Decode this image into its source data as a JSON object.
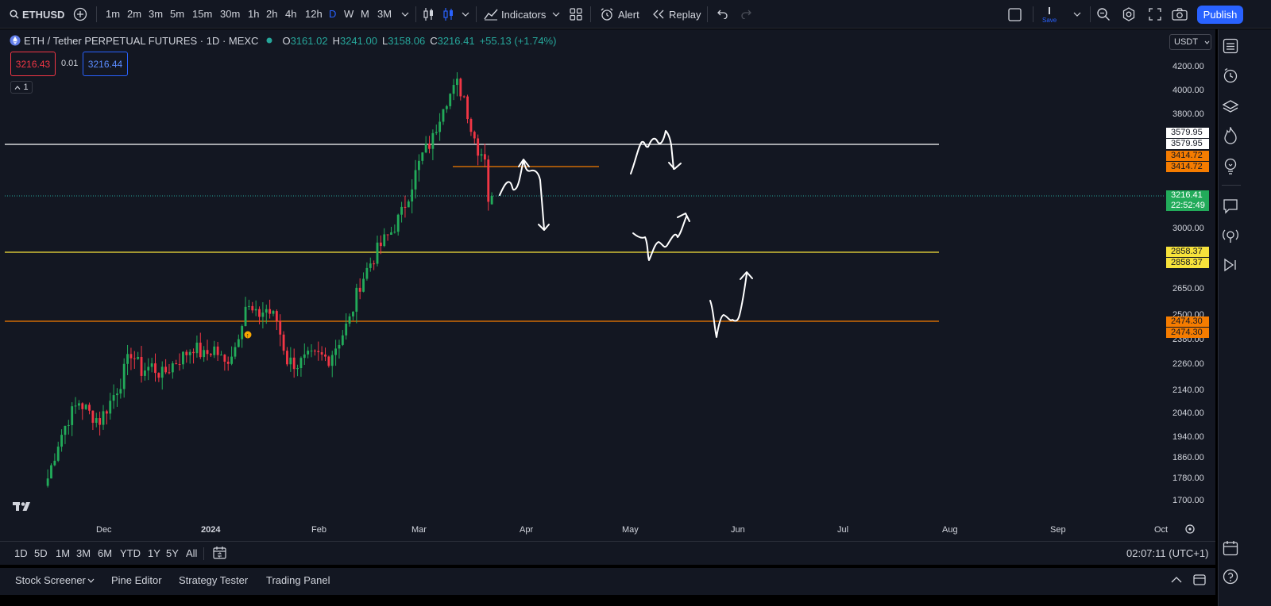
{
  "toolbar": {
    "symbol": "ETHUSD",
    "timeframes": [
      "1m",
      "2m",
      "3m",
      "5m",
      "15m",
      "30m",
      "1h",
      "2h",
      "4h",
      "12h",
      "D",
      "W",
      "M",
      "3M"
    ],
    "active_timeframe": "D",
    "indicators_label": "Indicators",
    "alert_label": "Alert",
    "replay_label": "Replay",
    "save_label": "Save",
    "publish_label": "Publish"
  },
  "legend": {
    "title": "ETH / Tether PERPETUAL FUTURES · 1D · MEXC",
    "o_key": "O",
    "o_val": "3161.02",
    "h_key": "H",
    "h_val": "3241.00",
    "l_key": "L",
    "l_val": "3158.06",
    "c_key": "C",
    "c_val": "3216.41",
    "change": "+55.13 (+1.74%)",
    "sell_price": "3216.43",
    "spread": "0.01",
    "buy_price": "3216.44",
    "collapsed_count": "1"
  },
  "price_scale": {
    "currency": "USDT",
    "ticks": [
      "4200.00",
      "4000.00",
      "3800.00",
      "3000.00",
      "2650.00",
      "2500.00",
      "2380.00",
      "2260.00",
      "2140.00",
      "2040.00",
      "1940.00",
      "1860.00",
      "1780.00",
      "1700.00"
    ],
    "labels": {
      "line1_a": "3579.95",
      "line1_b": "3579.95",
      "line2_a": "3414.72",
      "line2_b": "3414.72",
      "last_price": "3216.41",
      "countdown": "22:52:49",
      "line3_a": "2858.37",
      "line3_b": "2858.37",
      "line4_a": "2474.30",
      "line4_b": "2474.30"
    }
  },
  "time_axis": {
    "ticks": [
      "Dec",
      "2024",
      "Feb",
      "Mar",
      "Apr",
      "May",
      "Jun",
      "Jul",
      "Aug",
      "Sep",
      "Oct"
    ]
  },
  "range_bar": {
    "ranges": [
      "1D",
      "5D",
      "1M",
      "3M",
      "6M",
      "YTD",
      "1Y",
      "5Y",
      "All"
    ],
    "clock": "02:07:11 (UTC+1)"
  },
  "bottom_panel": {
    "tabs": [
      "Stock Screener",
      "Pine Editor",
      "Strategy Tester",
      "Trading Panel"
    ]
  },
  "colors": {
    "up": "#26a69a",
    "up_candle": "#22ab5a",
    "down": "#f23645",
    "background": "#131722",
    "white_line": "#ffffff",
    "yellow_line": "#f7e23b",
    "orange_line": "#f57c00",
    "accent": "#2962ff"
  },
  "chart_data": {
    "type": "candlestick",
    "symbol": "ETH / Tether PERPETUAL FUTURES",
    "interval": "1D",
    "exchange": "MEXC",
    "x_range": [
      "2023-11-15",
      "2024-10-10"
    ],
    "y_range": [
      1700,
      4200
    ],
    "horizontal_levels": [
      {
        "price": 3579.95,
        "color": "white"
      },
      {
        "price": 3414.72,
        "color": "orange",
        "segment": true
      },
      {
        "price": 2858.37,
        "color": "yellow"
      },
      {
        "price": 2474.3,
        "color": "orange"
      }
    ],
    "last_close": 3216.41,
    "anchor_closes": [
      [
        "2023-11-15",
        1780
      ],
      [
        "2023-11-18",
        1920
      ],
      [
        "2023-11-21",
        2020
      ],
      [
        "2023-11-24",
        2090
      ],
      [
        "2023-11-27",
        2040
      ],
      [
        "2023-11-30",
        2010
      ],
      [
        "2023-12-03",
        2090
      ],
      [
        "2023-12-06",
        2180
      ],
      [
        "2023-12-09",
        2320
      ],
      [
        "2023-12-12",
        2230
      ],
      [
        "2023-12-15",
        2250
      ],
      [
        "2023-12-18",
        2210
      ],
      [
        "2023-12-21",
        2260
      ],
      [
        "2023-12-24",
        2300
      ],
      [
        "2023-12-27",
        2350
      ],
      [
        "2023-12-30",
        2300
      ],
      [
        "2024-01-02",
        2340
      ],
      [
        "2024-01-05",
        2260
      ],
      [
        "2024-01-08",
        2350
      ],
      [
        "2024-01-11",
        2560
      ],
      [
        "2024-01-14",
        2500
      ],
      [
        "2024-01-17",
        2540
      ],
      [
        "2024-01-20",
        2480
      ],
      [
        "2024-01-23",
        2280
      ],
      [
        "2024-01-26",
        2260
      ],
      [
        "2024-01-29",
        2290
      ],
      [
        "2024-02-01",
        2300
      ],
      [
        "2024-02-04",
        2290
      ],
      [
        "2024-02-07",
        2380
      ],
      [
        "2024-02-10",
        2480
      ],
      [
        "2024-02-13",
        2680
      ],
      [
        "2024-02-16",
        2800
      ],
      [
        "2024-02-19",
        2900
      ],
      [
        "2024-02-22",
        2980
      ],
      [
        "2024-02-25",
        3100
      ],
      [
        "2024-02-28",
        3300
      ],
      [
        "2024-03-02",
        3500
      ],
      [
        "2024-03-05",
        3620
      ],
      [
        "2024-03-08",
        3900
      ],
      [
        "2024-03-11",
        4000
      ],
      [
        "2024-03-12",
        4050
      ],
      [
        "2024-03-14",
        3950
      ],
      [
        "2024-03-16",
        3700
      ],
      [
        "2024-03-18",
        3550
      ],
      [
        "2024-03-20",
        3500
      ],
      [
        "2024-03-21",
        3200
      ],
      [
        "2024-03-22",
        3216.41
      ]
    ]
  }
}
